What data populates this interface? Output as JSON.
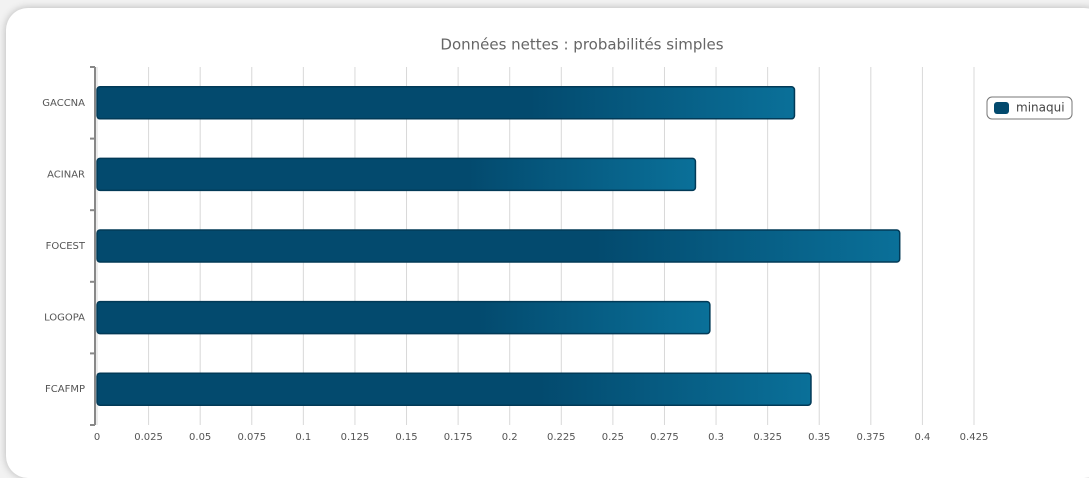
{
  "chart_data": {
    "type": "bar",
    "orientation": "horizontal",
    "title": "Données nettes : probabilités simples",
    "categories": [
      "GACCNA",
      "ACINAR",
      "FOCEST",
      "LOGOPA",
      "FCAFMP"
    ],
    "series": [
      {
        "name": "minaqui",
        "color": "#034a6e",
        "values": [
          0.338,
          0.29,
          0.389,
          0.297,
          0.346
        ]
      }
    ],
    "xlim": [
      0,
      0.425
    ],
    "xticks": [
      0,
      0.025,
      0.05,
      0.075,
      0.1,
      0.125,
      0.15,
      0.175,
      0.2,
      0.225,
      0.25,
      0.275,
      0.3,
      0.325,
      0.35,
      0.375,
      0.4,
      0.425
    ],
    "grid": true,
    "legend": "top-right"
  }
}
